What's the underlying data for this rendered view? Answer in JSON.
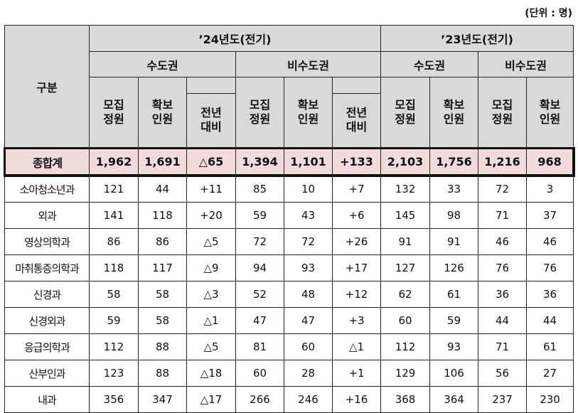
{
  "unit": "(단위 : 명)",
  "header": {
    "category": "구분",
    "year24": "’24년도(전기)",
    "year23": "’23년도(전기)",
    "metro": "수도권",
    "nonmetro": "비수도권",
    "recruit": "모집\n정원",
    "secured": "확보\n인원",
    "compare": "전년\n대비"
  },
  "total": {
    "label": "종합계",
    "values": [
      "1,962",
      "1,691",
      "△65",
      "1,394",
      "1,101",
      "+133",
      "2,103",
      "1,756",
      "1,216",
      "968"
    ]
  },
  "rows": [
    {
      "label": "소아청소년과",
      "values": [
        "121",
        "44",
        "+11",
        "85",
        "10",
        "+7",
        "132",
        "33",
        "72",
        "3"
      ]
    },
    {
      "label": "외과",
      "values": [
        "141",
        "118",
        "+20",
        "59",
        "43",
        "+6",
        "145",
        "98",
        "71",
        "37"
      ]
    },
    {
      "label": "영상의학과",
      "values": [
        "86",
        "86",
        "△5",
        "72",
        "72",
        "+26",
        "91",
        "91",
        "46",
        "46"
      ]
    },
    {
      "label": "마취통증의학과",
      "values": [
        "118",
        "117",
        "△9",
        "94",
        "93",
        "+17",
        "127",
        "126",
        "76",
        "76"
      ]
    },
    {
      "label": "신경과",
      "values": [
        "58",
        "58",
        "△3",
        "52",
        "48",
        "+12",
        "62",
        "61",
        "36",
        "36"
      ]
    },
    {
      "label": "신경외과",
      "values": [
        "59",
        "58",
        "△1",
        "47",
        "47",
        "+3",
        "60",
        "59",
        "44",
        "44"
      ]
    },
    {
      "label": "응급의학과",
      "values": [
        "112",
        "88",
        "△5",
        "81",
        "60",
        "△1",
        "112",
        "93",
        "71",
        "61"
      ]
    },
    {
      "label": "산부인과",
      "values": [
        "123",
        "88",
        "△18",
        "60",
        "28",
        "+1",
        "129",
        "106",
        "56",
        "27"
      ]
    },
    {
      "label": "내과",
      "values": [
        "356",
        "347",
        "△17",
        "266",
        "246",
        "+16",
        "368",
        "364",
        "237",
        "230"
      ]
    }
  ],
  "colors": {
    "header_bg": "#d9d9d9",
    "total_bg": "#f2dcdb"
  }
}
